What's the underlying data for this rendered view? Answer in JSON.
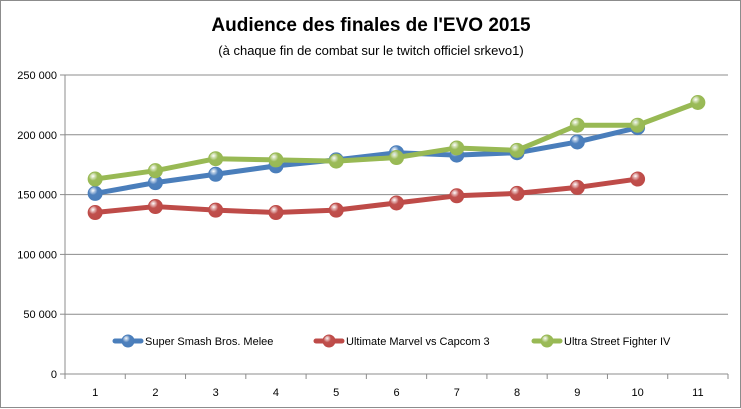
{
  "chart_data": {
    "type": "line",
    "title": "Audience des finales de l'EVO 2015",
    "subtitle": "(à chaque fin de combat sur le twitch officiel srkevo1)",
    "xlabel": "",
    "ylabel": "",
    "x": [
      1,
      2,
      3,
      4,
      5,
      6,
      7,
      8,
      9,
      10,
      11
    ],
    "x_tick_labels": [
      "1",
      "2",
      "3",
      "4",
      "5",
      "6",
      "7",
      "8",
      "9",
      "10",
      "11"
    ],
    "ylim": [
      0,
      250000
    ],
    "y_ticks": [
      0,
      50000,
      100000,
      150000,
      200000,
      250000
    ],
    "y_tick_labels": [
      "0",
      "50 000",
      "100 000",
      "150 000",
      "200 000",
      "250 000"
    ],
    "grid": "horizontal",
    "legend_position": "bottom-inside",
    "series": [
      {
        "name": "Super Smash Bros. Melee",
        "color": "#4a7ebb",
        "marker_color": "#4f81bd",
        "values": [
          151000,
          160000,
          167000,
          174000,
          179000,
          185000,
          183000,
          185000,
          194000,
          206000,
          null
        ]
      },
      {
        "name": "Ultimate Marvel vs Capcom 3",
        "color": "#be4b48",
        "marker_color": "#c0504d",
        "values": [
          135000,
          140000,
          137000,
          135000,
          137000,
          143000,
          149000,
          151000,
          156000,
          163000,
          null
        ]
      },
      {
        "name": "Ultra Street Fighter IV",
        "color": "#98b954",
        "marker_color": "#9bbb59",
        "values": [
          163000,
          170000,
          180000,
          179000,
          178000,
          181000,
          189000,
          187000,
          208000,
          208000,
          227000
        ]
      }
    ]
  }
}
